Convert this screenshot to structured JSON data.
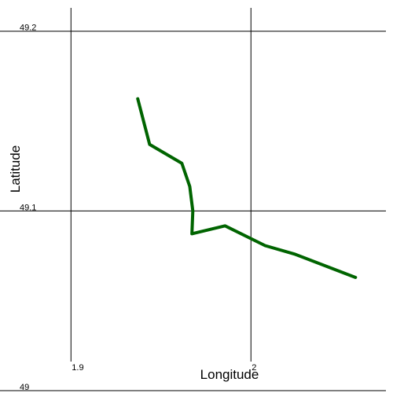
{
  "chart_data": {
    "type": "line",
    "x_label": "Longitude",
    "y_label": "Latitude",
    "series": [
      {
        "color": "#006400",
        "x": [
          1.9371,
          1.9437,
          1.9616,
          1.966,
          1.9677,
          1.9672,
          1.9856,
          2.0079,
          2.0245,
          2.0581
        ],
        "values": [
          49.1624,
          49.137,
          49.1265,
          49.1136,
          49.1,
          49.0873,
          49.0917,
          49.0807,
          49.0759,
          49.063
        ]
      }
    ],
    "xlim": [
      1.861,
      2.075
    ],
    "ylim": [
      49,
      49.213
    ],
    "xticks": [
      1.9,
      2
    ],
    "yticks": [
      49,
      49.1,
      49.2
    ],
    "grid": true
  }
}
